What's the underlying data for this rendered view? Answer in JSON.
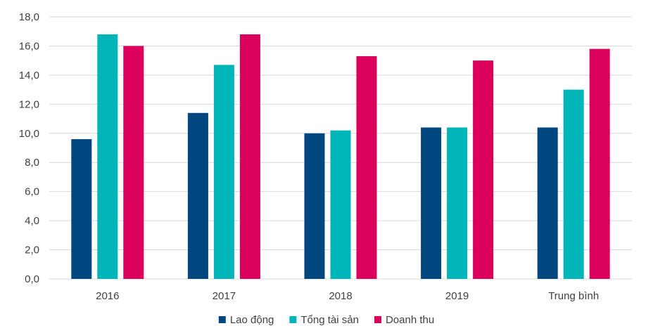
{
  "chart_data": {
    "type": "bar",
    "title": "",
    "xlabel": "",
    "ylabel": "",
    "categories": [
      "2016",
      "2017",
      "2018",
      "2019",
      "Trung bình"
    ],
    "series": [
      {
        "name": "Lao động",
        "color": "#00467F",
        "values": [
          9.6,
          11.4,
          10.0,
          10.4,
          10.4
        ]
      },
      {
        "name": "Tổng tài sản",
        "color": "#00B5B8",
        "values": [
          16.8,
          14.7,
          10.2,
          10.4,
          13.0
        ]
      },
      {
        "name": "Doanh thu",
        "color": "#DB005B",
        "values": [
          16.0,
          16.8,
          15.3,
          15.0,
          15.8
        ]
      }
    ],
    "ylim": [
      0,
      18
    ],
    "yticks": [
      "0,0",
      "2,0",
      "4,0",
      "6,0",
      "8,0",
      "10,0",
      "12,0",
      "14,0",
      "16,0",
      "18,0"
    ],
    "grid": true,
    "legend_position": "bottom-center",
    "gridline_color": "#D9D9D9"
  }
}
